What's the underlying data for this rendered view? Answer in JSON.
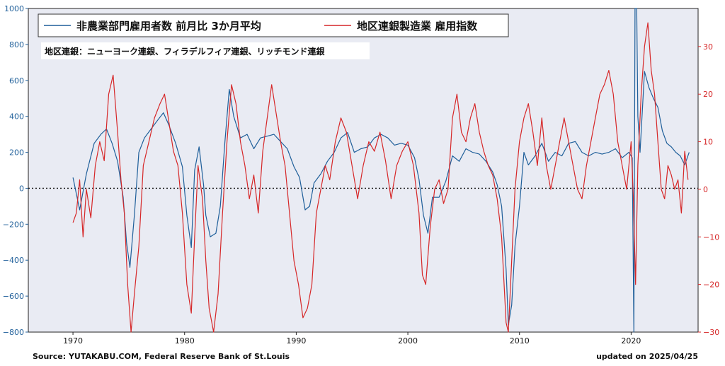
{
  "chart_data": {
    "type": "line",
    "x_range": [
      1966,
      2026
    ],
    "x_ticks": [
      1970,
      1980,
      1990,
      2000,
      2010,
      2020
    ],
    "left_axis": {
      "ylim": [
        -800,
        1000
      ],
      "ticks": [
        -800,
        -600,
        -400,
        -200,
        0,
        200,
        400,
        600,
        800,
        1000
      ],
      "color": "#1f5f9a"
    },
    "right_axis": {
      "ylim": [
        -30,
        38
      ],
      "ticks": [
        -30,
        -20,
        -10,
        0,
        10,
        20,
        30
      ],
      "color": "#d62728"
    },
    "zero_line": true,
    "grid": false,
    "legend_position": "top-left",
    "background": "#e9ebf3",
    "series": [
      {
        "name": "非農業部門雇用者数 前月比 3か月平均",
        "axis": "left",
        "color": "#1f5f9a",
        "x": [
          1970.0,
          1970.6,
          1971.2,
          1971.9,
          1972.5,
          1973.0,
          1973.5,
          1974.0,
          1974.5,
          1974.8,
          1975.1,
          1975.5,
          1975.9,
          1976.4,
          1977.0,
          1977.6,
          1978.1,
          1978.6,
          1979.2,
          1979.8,
          1980.2,
          1980.6,
          1980.9,
          1981.3,
          1981.7,
          1981.9,
          1982.3,
          1982.8,
          1983.2,
          1983.6,
          1984.0,
          1984.4,
          1985.0,
          1985.6,
          1986.2,
          1986.8,
          1987.4,
          1988.0,
          1988.6,
          1989.2,
          1989.8,
          1990.3,
          1990.8,
          1991.2,
          1991.6,
          1992.2,
          1992.8,
          1993.4,
          1994.0,
          1994.6,
          1995.2,
          1995.8,
          1996.4,
          1997.0,
          1997.6,
          1998.2,
          1998.8,
          1999.4,
          2000.0,
          2000.6,
          2001.0,
          2001.4,
          2001.8,
          2002.2,
          2002.8,
          2003.4,
          2004.0,
          2004.6,
          2005.2,
          2005.8,
          2006.4,
          2007.0,
          2007.6,
          2008.0,
          2008.4,
          2008.8,
          2009.0,
          2009.3,
          2009.6,
          2010.0,
          2010.4,
          2010.8,
          2011.4,
          2012.0,
          2012.6,
          2013.2,
          2013.8,
          2014.4,
          2015.0,
          2015.6,
          2016.2,
          2016.8,
          2017.4,
          2018.0,
          2018.6,
          2019.2,
          2019.8,
          2020.1,
          2020.25,
          2020.35,
          2020.5,
          2020.6,
          2020.8,
          2021.2,
          2021.6,
          2022.0,
          2022.4,
          2022.8,
          2023.2,
          2023.6,
          2024.0,
          2024.4,
          2024.8,
          2025.2
        ],
        "y": [
          60,
          -120,
          80,
          250,
          300,
          330,
          250,
          150,
          -50,
          -300,
          -440,
          -150,
          200,
          280,
          330,
          380,
          420,
          350,
          250,
          120,
          -150,
          -330,
          100,
          230,
          20,
          -150,
          -270,
          -250,
          -100,
          250,
          550,
          400,
          280,
          300,
          220,
          280,
          290,
          300,
          260,
          220,
          120,
          60,
          -120,
          -100,
          30,
          80,
          150,
          200,
          280,
          310,
          200,
          220,
          230,
          280,
          300,
          280,
          240,
          250,
          240,
          170,
          50,
          -150,
          -250,
          -50,
          -50,
          40,
          180,
          150,
          220,
          200,
          190,
          150,
          90,
          20,
          -100,
          -450,
          -760,
          -650,
          -320,
          -100,
          200,
          130,
          180,
          250,
          150,
          200,
          180,
          250,
          260,
          200,
          180,
          200,
          190,
          200,
          220,
          170,
          200,
          170,
          -800,
          1000,
          1000,
          400,
          200,
          650,
          560,
          500,
          450,
          320,
          250,
          230,
          200,
          180,
          130,
          200
        ]
      },
      {
        "name": "地区連銀製造業 雇用指数",
        "axis": "right",
        "color": "#d62728",
        "x": [
          1970.0,
          1970.3,
          1970.6,
          1970.9,
          1971.2,
          1971.6,
          1972.0,
          1972.4,
          1972.8,
          1973.2,
          1973.6,
          1974.0,
          1974.3,
          1974.6,
          1974.9,
          1975.2,
          1975.5,
          1975.9,
          1976.3,
          1976.8,
          1977.3,
          1977.8,
          1978.2,
          1978.6,
          1979.0,
          1979.4,
          1979.8,
          1980.2,
          1980.6,
          1980.9,
          1981.2,
          1981.6,
          1981.9,
          1982.2,
          1982.6,
          1983.0,
          1983.4,
          1983.8,
          1984.2,
          1984.6,
          1985.0,
          1985.4,
          1985.8,
          1986.2,
          1986.6,
          1987.0,
          1987.4,
          1987.8,
          1988.2,
          1988.6,
          1989.0,
          1989.4,
          1989.8,
          1990.2,
          1990.6,
          1991.0,
          1991.4,
          1991.8,
          1992.2,
          1992.6,
          1993.0,
          1993.5,
          1994.0,
          1994.5,
          1995.0,
          1995.5,
          1996.0,
          1996.5,
          1997.0,
          1997.5,
          1998.0,
          1998.5,
          1999.0,
          1999.5,
          2000.0,
          2000.5,
          2001.0,
          2001.3,
          2001.6,
          2002.0,
          2002.4,
          2002.8,
          2003.2,
          2003.6,
          2004.0,
          2004.4,
          2004.8,
          2005.2,
          2005.6,
          2006.0,
          2006.4,
          2006.8,
          2007.2,
          2007.6,
          2008.0,
          2008.4,
          2008.8,
          2009.0,
          2009.3,
          2009.6,
          2010.0,
          2010.4,
          2010.8,
          2011.2,
          2011.6,
          2012.0,
          2012.4,
          2012.8,
          2013.2,
          2013.6,
          2014.0,
          2014.4,
          2014.8,
          2015.2,
          2015.6,
          2016.0,
          2016.4,
          2016.8,
          2017.2,
          2017.6,
          2018.0,
          2018.4,
          2018.8,
          2019.2,
          2019.6,
          2020.0,
          2020.2,
          2020.4,
          2020.6,
          2020.9,
          2021.2,
          2021.5,
          2021.8,
          2022.1,
          2022.4,
          2022.7,
          2023.0,
          2023.3,
          2023.6,
          2023.9,
          2024.2,
          2024.5,
          2024.8,
          2025.1
        ],
        "y": [
          -7,
          -5,
          2,
          -10,
          0,
          -6,
          5,
          10,
          6,
          20,
          24,
          12,
          2,
          -5,
          -20,
          -30,
          -22,
          -12,
          5,
          10,
          15,
          18,
          20,
          14,
          8,
          5,
          -5,
          -20,
          -26,
          -10,
          5,
          -2,
          -15,
          -25,
          -30,
          -22,
          -5,
          10,
          22,
          18,
          10,
          5,
          -2,
          3,
          -5,
          8,
          15,
          22,
          16,
          10,
          5,
          -5,
          -15,
          -20,
          -27,
          -25,
          -20,
          -5,
          0,
          5,
          2,
          10,
          15,
          12,
          5,
          -2,
          5,
          10,
          8,
          12,
          6,
          -2,
          5,
          8,
          10,
          5,
          -5,
          -18,
          -20,
          -8,
          0,
          2,
          -3,
          0,
          15,
          20,
          12,
          10,
          15,
          18,
          12,
          8,
          5,
          3,
          -2,
          -10,
          -28,
          -31,
          -15,
          0,
          10,
          15,
          18,
          12,
          5,
          15,
          5,
          0,
          5,
          10,
          15,
          10,
          5,
          0,
          -2,
          5,
          10,
          15,
          20,
          22,
          25,
          20,
          10,
          5,
          0,
          10,
          -2,
          -20,
          5,
          20,
          30,
          35,
          25,
          20,
          10,
          0,
          -2,
          5,
          3,
          0,
          2,
          -5,
          8,
          2
        ]
      }
    ]
  },
  "legend": {
    "series1_label": "非農業部門雇用者数 前月比 3か月平均",
    "series2_label": "地区連銀製造業 雇用指数"
  },
  "annotation": "地区連銀：ニューヨーク連銀、フィラデルフィア連銀、リッチモンド連銀",
  "footer": {
    "source": "Source: YUTAKABU.COM, Federal Reserve Bank of St.Louis",
    "updated": "updated on 2025/04/25"
  }
}
